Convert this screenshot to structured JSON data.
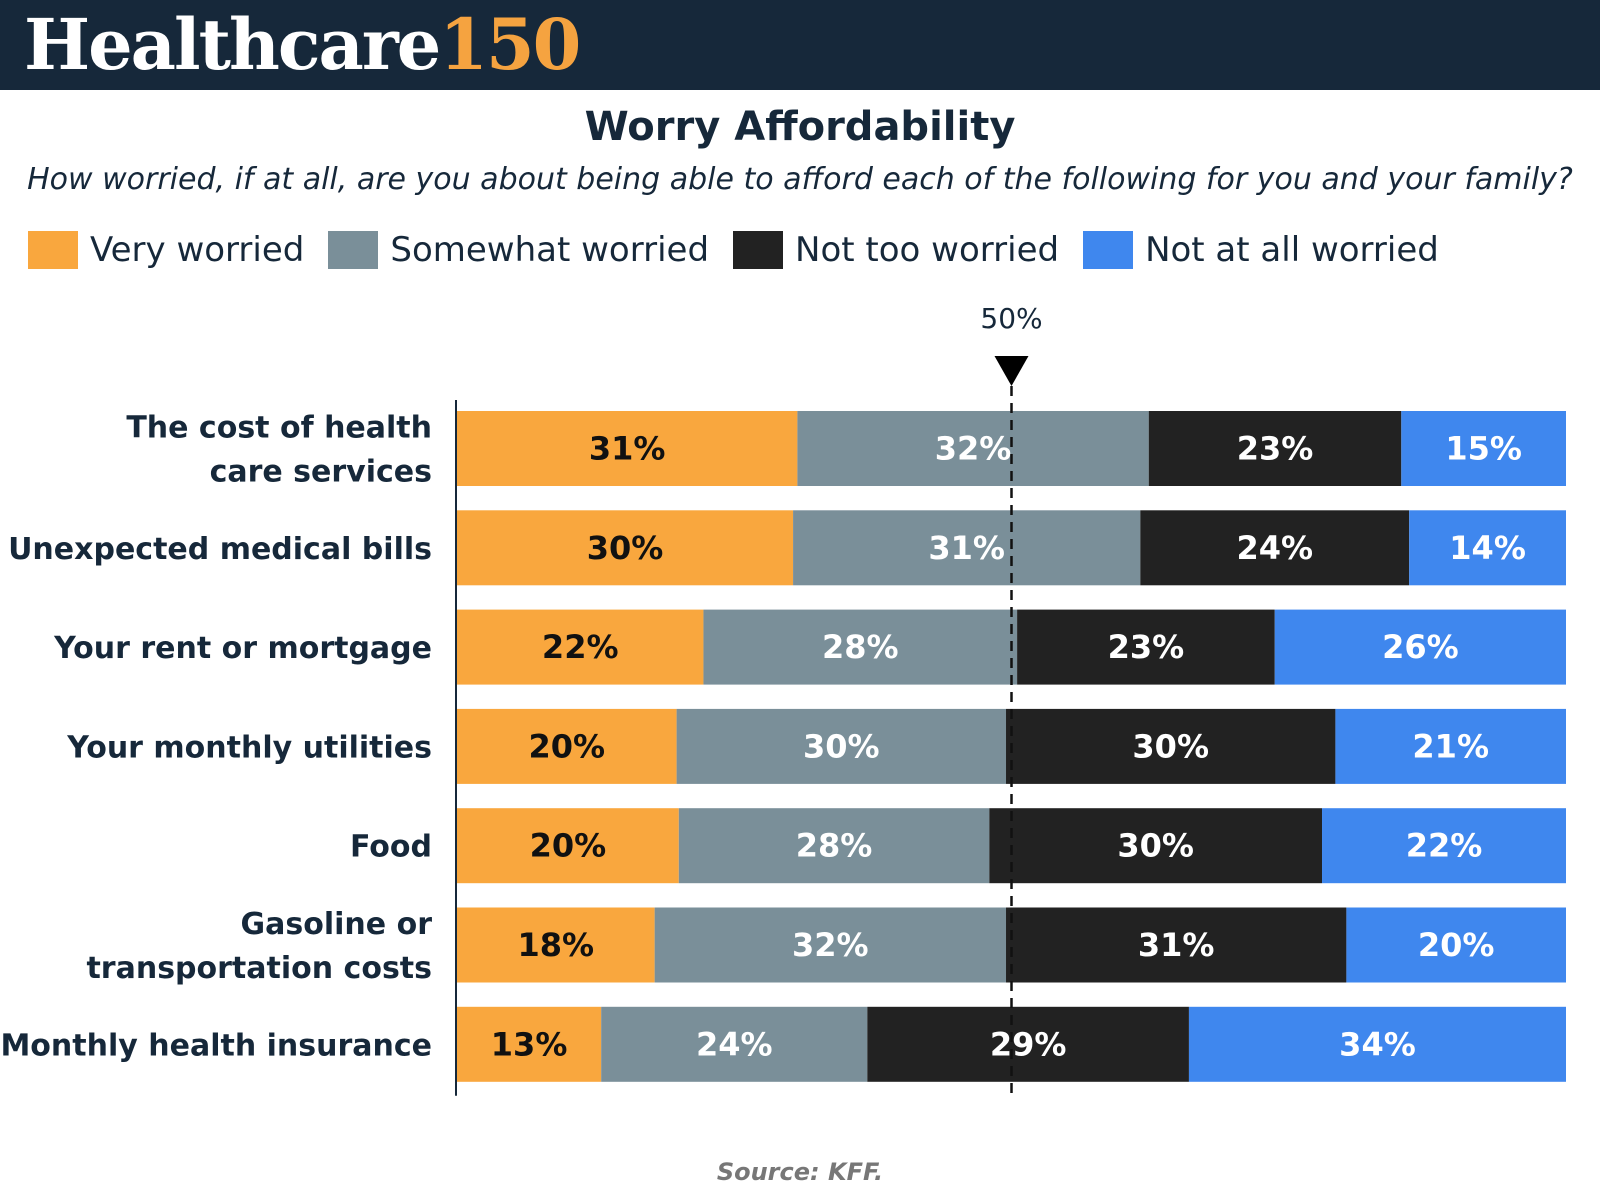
{
  "brand": {
    "name_main": "Healthcare",
    "name_number": "150"
  },
  "colors": {
    "header_bg": "#16283a",
    "brand_accent": "#f5a340",
    "very_worried": "#f9a73e",
    "somewhat_worried": "#7a8f99",
    "not_too_worried": "#222222",
    "not_at_all_worried": "#3f87ee"
  },
  "chart_data": {
    "type": "bar",
    "orientation": "horizontal",
    "stacked": true,
    "title": "Worry Affordability",
    "subtitle": "How worried, if at all, are you about being able to afford each of the following for you and your family?",
    "categories": [
      "The cost of health care services",
      "Unexpected medical bills",
      "Your rent or mortgage",
      "Your monthly utilities",
      "Food",
      "Gasoline or transportation costs",
      "Monthly health insurance"
    ],
    "category_lines": [
      [
        "The cost of health",
        "care services"
      ],
      [
        "Unexpected medical bills"
      ],
      [
        "Your rent or mortgage"
      ],
      [
        "Your monthly utilities"
      ],
      [
        "Food"
      ],
      [
        "Gasoline or",
        "transportation costs"
      ],
      [
        "Monthly health insurance"
      ]
    ],
    "series": [
      {
        "name": "Very worried",
        "color": "#f9a73e",
        "label_color": "#111111",
        "values": [
          31,
          30,
          22,
          20,
          20,
          18,
          13
        ]
      },
      {
        "name": "Somewhat worried",
        "color": "#7a8f99",
        "label_color": "#ffffff",
        "values": [
          32,
          31,
          28,
          30,
          28,
          32,
          24
        ]
      },
      {
        "name": "Not too worried",
        "color": "#222222",
        "label_color": "#ffffff",
        "values": [
          23,
          24,
          23,
          30,
          30,
          31,
          29
        ]
      },
      {
        "name": "Not at all worried",
        "color": "#3f87ee",
        "label_color": "#ffffff",
        "values": [
          15,
          14,
          26,
          21,
          22,
          20,
          34
        ]
      }
    ],
    "value_suffix": "%",
    "reference_line": {
      "value": 50,
      "label": "50%"
    },
    "legend_position": "top-left",
    "grid": false
  },
  "source": "Source: KFF."
}
